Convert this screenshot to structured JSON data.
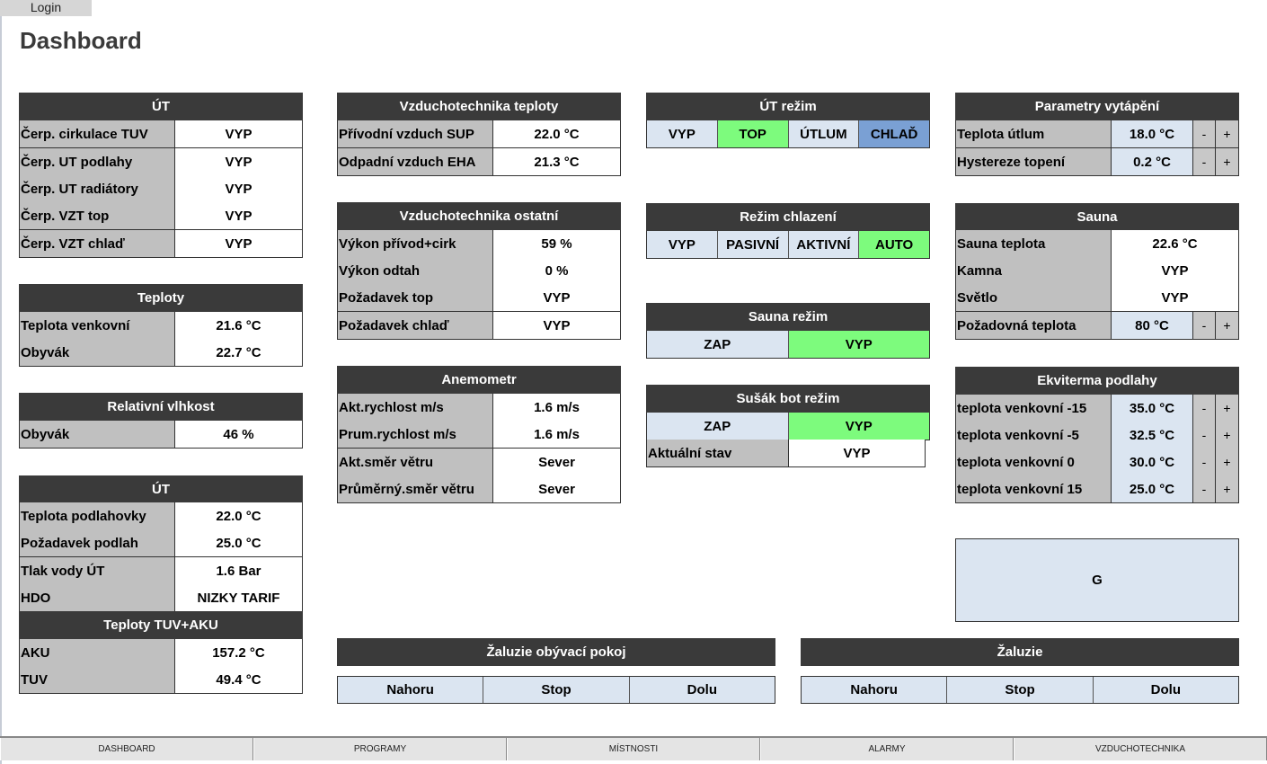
{
  "login_label": "Login",
  "page_title": "Dashboard",
  "col1": {
    "ut_title": "ÚT",
    "ut_rows": [
      {
        "label": "Čerp. cirkulace TUV",
        "value": "VYP"
      },
      {
        "label": "Čerp. UT podlahy",
        "value": "VYP"
      },
      {
        "label": "Čerp. UT radiátory",
        "value": "VYP"
      },
      {
        "label": "Čerp. VZT top",
        "value": "VYP"
      },
      {
        "label": "Čerp. VZT chlaď",
        "value": "VYP"
      }
    ],
    "teploty_title": "Teploty",
    "teploty_rows": [
      {
        "label": "Teplota venkovní",
        "value": "21.6 °C"
      },
      {
        "label": "Obyvák",
        "value": "22.7 °C"
      }
    ],
    "vlhkost_title": "Relativní vlhkost",
    "vlhkost_rows": [
      {
        "label": "Obyvák",
        "value": "46 %"
      }
    ],
    "ut2_title": "ÚT",
    "ut2_rows": [
      {
        "label": "Teplota podlahovky",
        "value": "22.0 °C"
      },
      {
        "label": "Požadavek podlah",
        "value": "25.0 °C"
      },
      {
        "label": "Tlak vody ÚT",
        "value": "1.6 Bar"
      },
      {
        "label": "HDO",
        "value": "NIZKY TARIF"
      }
    ],
    "tuv_title": "Teploty TUV+AKU",
    "tuv_rows": [
      {
        "label": "AKU",
        "value": "157.2 °C"
      },
      {
        "label": "TUV",
        "value": "49.4 °C"
      }
    ]
  },
  "col2": {
    "vzt_teploty_title": "Vzduchotechnika teploty",
    "vzt_teploty_rows": [
      {
        "label": "Přívodní vzduch SUP",
        "value": "22.0 °C"
      },
      {
        "label": "Odpadní vzduch EHA",
        "value": "21.3 °C"
      }
    ],
    "vzt_ostatni_title": "Vzduchotechnika ostatní",
    "vzt_ostatni_rows": [
      {
        "label": "Výkon přívod+cirk",
        "value": "59 %"
      },
      {
        "label": "Výkon odtah",
        "value": "0 %"
      },
      {
        "label": "Požadavek top",
        "value": "VYP"
      },
      {
        "label": "Požadavek chlaď",
        "value": "VYP"
      }
    ],
    "anemometr_title": "Anemometr",
    "anemometr_rows": [
      {
        "label": "Akt.rychlost m/s",
        "value": "1.6 m/s"
      },
      {
        "label": "Prum.rychlost m/s",
        "value": "1.6 m/s"
      },
      {
        "label": "Akt.směr větru",
        "value": "Sever"
      },
      {
        "label": "Průměrný.směr větru",
        "value": "Sever"
      }
    ]
  },
  "col3": {
    "ut_rezim_title": "ÚT režim",
    "ut_rezim_buttons": [
      "VYP",
      "TOP",
      "ÚTLUM",
      "CHLAĎ"
    ],
    "chlazeni_title": "Režim chlazení",
    "chlazeni_buttons": [
      "VYP",
      "PASIVNÍ",
      "AKTIVNÍ",
      "AUTO"
    ],
    "sauna_rezim_title": "Sauna režim",
    "sauna_rezim_buttons": [
      "ZAP",
      "VYP"
    ],
    "susak_title": "Sušák bot režim",
    "susak_buttons": [
      "ZAP",
      "VYP"
    ],
    "susak_state_label": "Aktuální stav",
    "susak_state_value": "VYP"
  },
  "col4": {
    "param_title": "Parametry vytápění",
    "param_rows": [
      {
        "label": "Teplota útlum",
        "value": "18.0 °C"
      },
      {
        "label": "Hystereze topení",
        "value": "0.2 °C"
      }
    ],
    "sauna_title": "Sauna",
    "sauna_rows": [
      {
        "label": "Sauna teplota",
        "value": "22.6 °C"
      },
      {
        "label": "Kamna",
        "value": "VYP"
      },
      {
        "label": "Světlo",
        "value": "VYP"
      }
    ],
    "sauna_setpoint": {
      "label": "Požadovná teplota",
      "value": "80 °C"
    },
    "ekviterma_title": "Ekviterma podlahy",
    "ekviterma_rows": [
      {
        "label": "teplota venkovní -15",
        "value": "35.0 °C"
      },
      {
        "label": "teplota venkovní -5",
        "value": "32.5 °C"
      },
      {
        "label": "teplota venkovní 0",
        "value": "30.0 °C"
      },
      {
        "label": "teplota venkovní 15",
        "value": "25.0 °C"
      }
    ],
    "g_button": "G"
  },
  "minus_label": "-",
  "plus_label": "+",
  "zaluzie_obyvak": {
    "title": "Žaluzie obývací pokoj",
    "buttons": [
      "Nahoru",
      "Stop",
      "Dolu"
    ]
  },
  "zaluzie": {
    "title": "Žaluzie",
    "buttons": [
      "Nahoru",
      "Stop",
      "Dolu"
    ]
  },
  "footer_tabs": [
    "DASHBOARD",
    "PROGRAMY",
    "MÍSTNOSTI",
    "ALARMY",
    "VZDUCHOTECHNIKA"
  ]
}
